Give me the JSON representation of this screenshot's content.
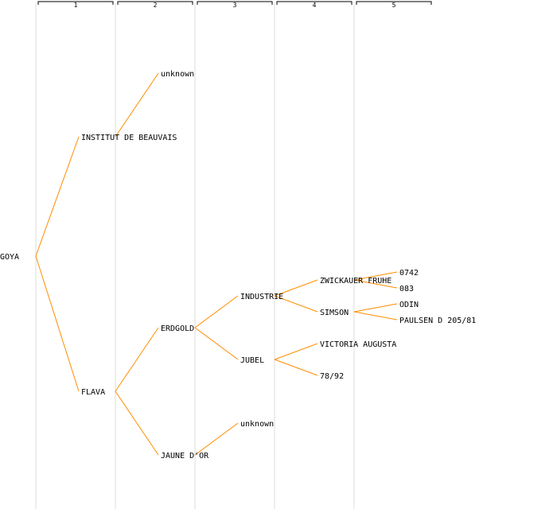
{
  "colors": {
    "edge": "#ff8c00",
    "gridline": "#eeeeee",
    "bracket": "#000000",
    "text": "#000000"
  },
  "generations": [
    {
      "label": "1"
    },
    {
      "label": "2"
    },
    {
      "label": "3"
    },
    {
      "label": "4"
    },
    {
      "label": "5"
    }
  ],
  "tree": {
    "name": "GOYA",
    "children": [
      {
        "name": "INSTITUT DE BEAUVAIS",
        "children": [
          {
            "name": "unknown"
          }
        ]
      },
      {
        "name": "FLAVA",
        "children": [
          {
            "name": "ERDGOLD",
            "children": [
              {
                "name": "INDUSTRIE",
                "children": [
                  {
                    "name": "ZWICKAUER FRUHE",
                    "children": [
                      {
                        "name": "0742"
                      },
                      {
                        "name": "083"
                      }
                    ]
                  },
                  {
                    "name": "SIMSON",
                    "children": [
                      {
                        "name": "ODIN"
                      },
                      {
                        "name": "PAULSEN D 205/81"
                      }
                    ]
                  }
                ]
              },
              {
                "name": "JUBEL",
                "children": [
                  {
                    "name": "VICTORIA AUGUSTA"
                  },
                  {
                    "name": "78/92"
                  }
                ]
              }
            ]
          },
          {
            "name": "JAUNE D'OR",
            "children": [
              {
                "name": "unknown"
              }
            ]
          }
        ]
      }
    ]
  }
}
